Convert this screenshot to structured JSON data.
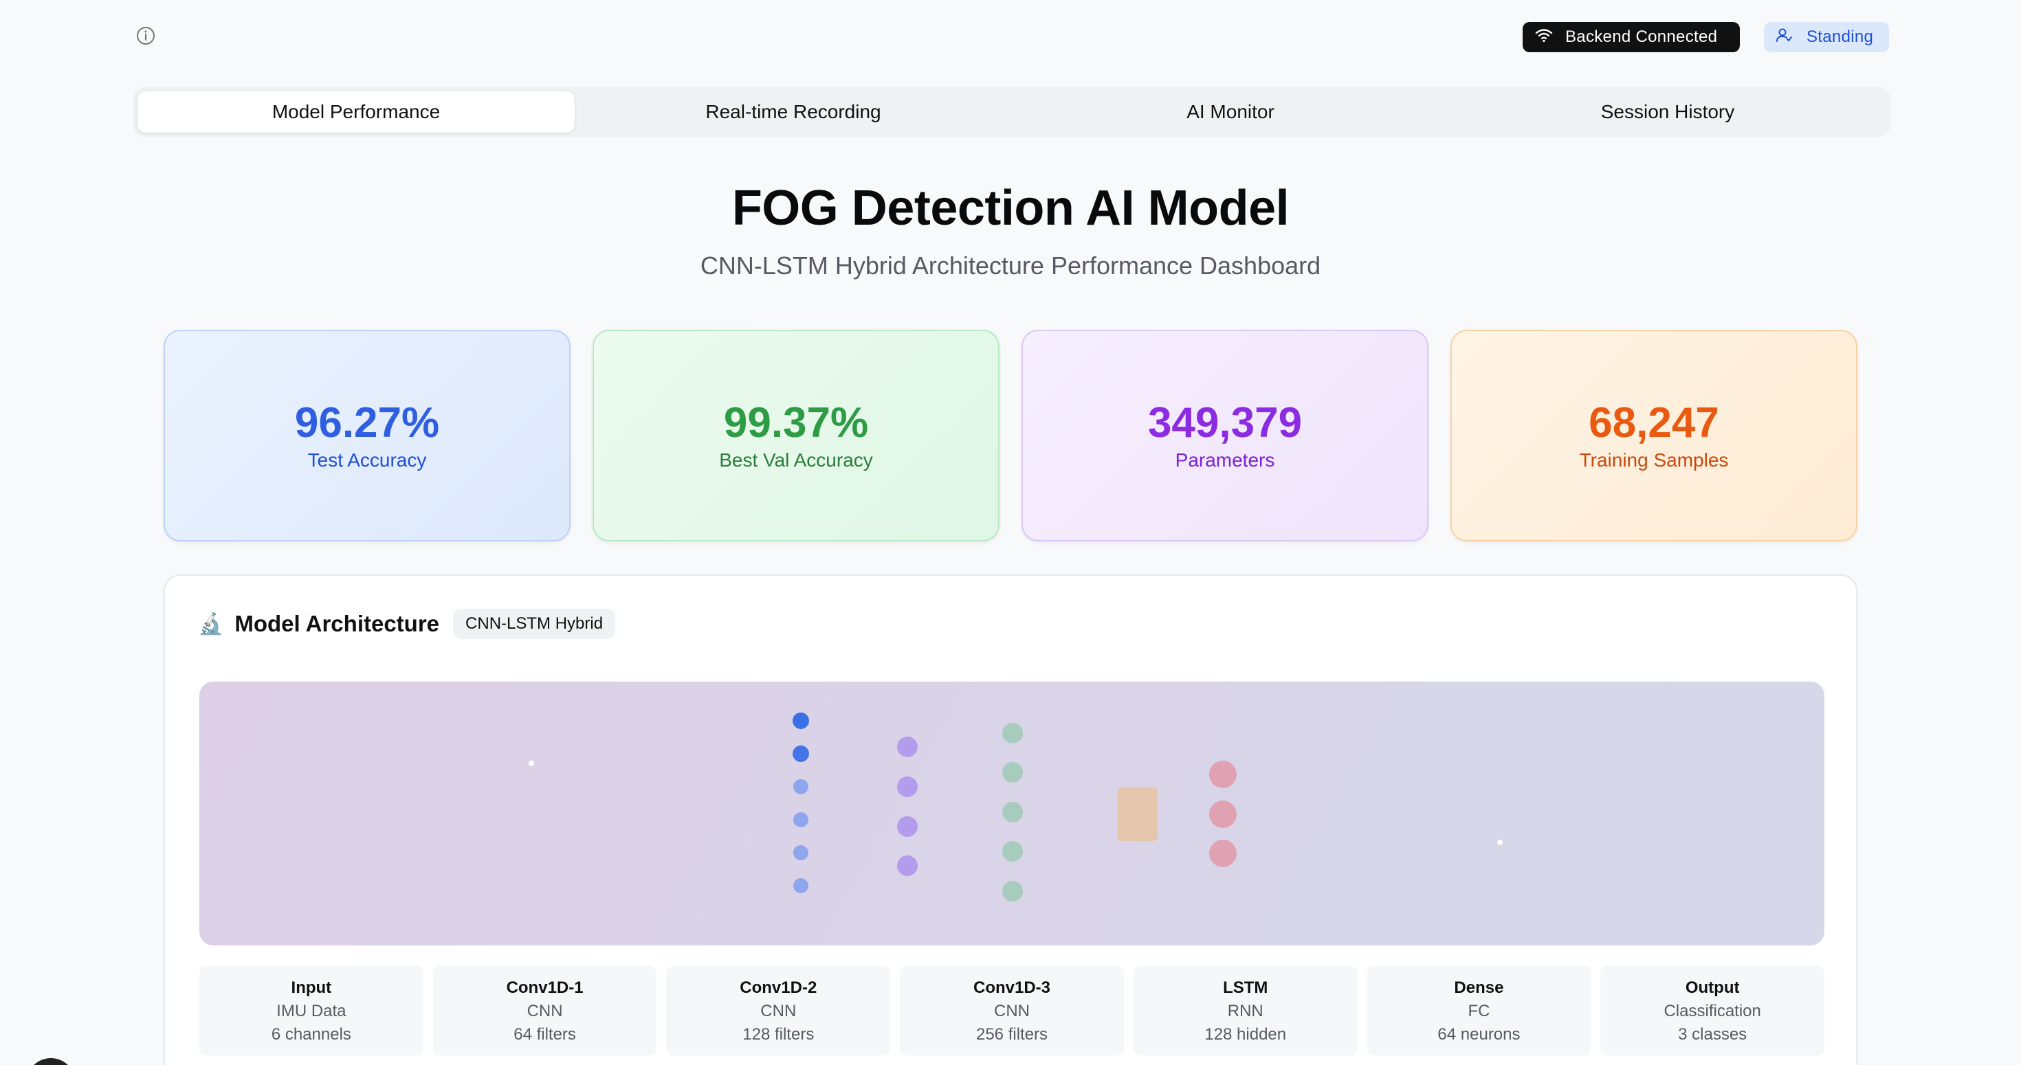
{
  "topbar": {
    "info_icon": "info-circle-icon",
    "status_label": "Backend Connected",
    "status_icon": "wifi-icon",
    "mode_label": "Standing",
    "mode_icon": "user-icon"
  },
  "tabs": [
    {
      "label": "Model Performance",
      "active": true
    },
    {
      "label": "Real-time Recording",
      "active": false
    },
    {
      "label": "AI Monitor",
      "active": false
    },
    {
      "label": "Session History",
      "active": false
    }
  ],
  "header": {
    "title": "FOG Detection AI Model",
    "subtitle": "CNN-LSTM Hybrid Architecture Performance Dashboard"
  },
  "stats": [
    {
      "value": "96.27%",
      "label": "Test Accuracy",
      "color": "#2f5fe0"
    },
    {
      "value": "99.37%",
      "label": "Best Val Accuracy",
      "color": "#2e9b45"
    },
    {
      "value": "349,379",
      "label": "Parameters",
      "color": "#8b2be2"
    },
    {
      "value": "68,247",
      "label": "Training Samples",
      "color": "#e85a10"
    }
  ],
  "architecture": {
    "icon": "microscope-icon",
    "title": "Model Architecture",
    "chip": "CNN-LSTM Hybrid",
    "layers": [
      {
        "name": "Input",
        "type": "IMU Data",
        "detail": "6 channels"
      },
      {
        "name": "Conv1D-1",
        "type": "CNN",
        "detail": "64 filters"
      },
      {
        "name": "Conv1D-2",
        "type": "CNN",
        "detail": "128 filters"
      },
      {
        "name": "Conv1D-3",
        "type": "CNN",
        "detail": "256 filters"
      },
      {
        "name": "LSTM",
        "type": "RNN",
        "detail": "128 hidden"
      },
      {
        "name": "Dense",
        "type": "FC",
        "detail": "64 neurons"
      },
      {
        "name": "Output",
        "type": "Classification",
        "detail": "3 classes"
      }
    ],
    "colors": {
      "input_nodes": "#3b6fe8",
      "conv1_nodes": "#a78bf0",
      "conv2_nodes": "#9ec9b9",
      "lstm_cell": "#e8c4a8",
      "dense_nodes": "#df9fb0"
    }
  }
}
